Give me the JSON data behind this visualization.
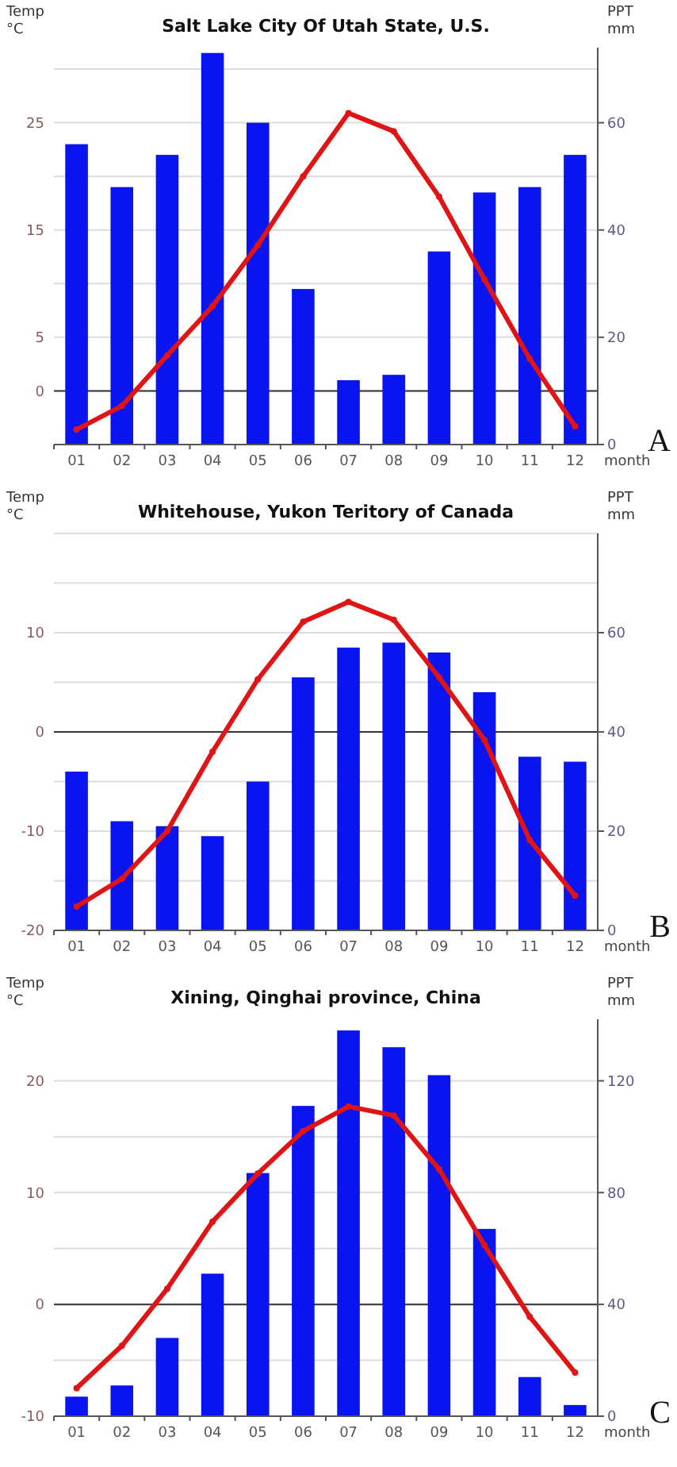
{
  "chart_data": [
    {
      "type": "bar",
      "title": "Salt Lake City Of Utah State, U.S.",
      "xlabel": "month",
      "ylabel": "Temp °C",
      "y2label": "PPT mm",
      "categories": [
        "01",
        "02",
        "03",
        "04",
        "05",
        "06",
        "07",
        "08",
        "09",
        "10",
        "11",
        "12"
      ],
      "series": [
        {
          "axis": "y2",
          "color": "#0a14f0",
          "values": [
            56,
            48,
            54,
            73,
            60,
            29,
            12,
            13,
            36,
            47,
            48,
            54
          ]
        },
        {
          "type": "line",
          "color": "#e01414",
          "values": [
            -3.6,
            -1.4,
            3.3,
            7.9,
            13.6,
            20,
            25.9,
            24.2,
            18.1,
            10.4,
            3,
            -3.3
          ]
        }
      ],
      "marker": "circle",
      "ylim": [
        -5,
        32
      ],
      "yticks": [
        0,
        5,
        {
          "value": 10,
          "label": null
        },
        15,
        {
          "value": 20,
          "label": null
        },
        25,
        {
          "value": 30,
          "label": null
        }
      ],
      "y2lim": [
        0,
        74
      ],
      "y2ticks": [
        0,
        20,
        40,
        60
      ],
      "grid": "y",
      "ref_lines": [
        {
          "axis": "y",
          "value": 0,
          "color": "#333333"
        }
      ],
      "annotations": [
        "A"
      ]
    },
    {
      "type": "bar",
      "title": "Whitehouse, Yukon Teritory of Canada",
      "xlabel": "month",
      "ylabel": "Temp °C",
      "y2label": "PPT mm",
      "categories": [
        "01",
        "02",
        "03",
        "04",
        "05",
        "06",
        "07",
        "08",
        "09",
        "10",
        "11",
        "12"
      ],
      "series": [
        {
          "axis": "y2",
          "color": "#0a14f0",
          "values": [
            32,
            22,
            21,
            19,
            30,
            51,
            57,
            58,
            56,
            48,
            35,
            34
          ]
        },
        {
          "type": "line",
          "color": "#e01414",
          "values": [
            -17.6,
            -14.8,
            -10,
            -2,
            5.3,
            11.1,
            13.1,
            11.3,
            5.5,
            -0.8,
            -10.9,
            -16.5
          ]
        }
      ],
      "marker": "circle",
      "ylim": [
        -20,
        20
      ],
      "yticks": [
        -20,
        {
          "value": -15,
          "label": null
        },
        -10,
        {
          "value": -5,
          "label": null
        },
        0,
        {
          "value": 5,
          "label": null
        },
        10,
        {
          "value": 15,
          "label": null
        },
        {
          "value": 20,
          "label": null
        }
      ],
      "y2lim": [
        0,
        80
      ],
      "y2ticks": [
        0,
        20,
        40,
        60
      ],
      "grid": "y",
      "ref_lines": [
        {
          "axis": "y",
          "value": 0,
          "color": "#333333"
        }
      ],
      "annotations": [
        "B"
      ]
    },
    {
      "type": "bar",
      "title": "Xining, Qinghai province, China",
      "xlabel": "month",
      "ylabel": "Temp °C",
      "y2label": "PPT mm",
      "categories": [
        "01",
        "02",
        "03",
        "04",
        "05",
        "06",
        "07",
        "08",
        "09",
        "10",
        "11",
        "12"
      ],
      "series": [
        {
          "axis": "y2",
          "color": "#0a14f0",
          "values": [
            7,
            11,
            28,
            51,
            87,
            111,
            138,
            132,
            122,
            67,
            14,
            4
          ]
        },
        {
          "type": "line",
          "color": "#e01414",
          "values": [
            -7.5,
            -3.7,
            1.4,
            7.4,
            11.7,
            15.5,
            17.7,
            16.9,
            12.1,
            5.3,
            -1.1,
            -6.1
          ]
        }
      ],
      "marker": "circle",
      "ylim": [
        -10,
        25.5
      ],
      "yticks": [
        -10,
        {
          "value": -5,
          "label": null
        },
        0,
        {
          "value": 5,
          "label": null
        },
        10,
        {
          "value": 15,
          "label": null
        },
        20
      ],
      "y2lim": [
        0,
        142
      ],
      "y2ticks": [
        0,
        40,
        80,
        120
      ],
      "grid": "y",
      "ref_lines": [
        {
          "axis": "y",
          "value": 0,
          "color": "#333333"
        }
      ],
      "annotations": [
        "C"
      ]
    }
  ]
}
